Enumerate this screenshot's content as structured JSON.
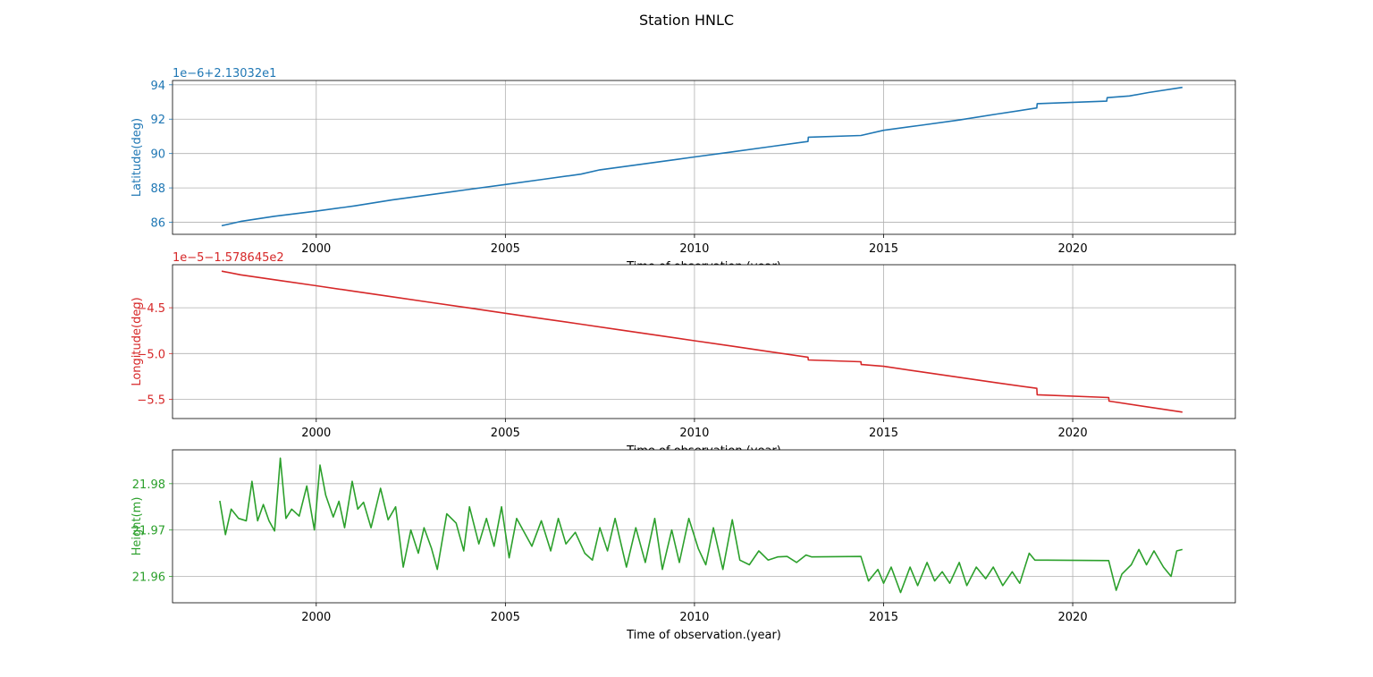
{
  "figure_title": "Station HNLC",
  "chart_data": [
    {
      "type": "line",
      "name": "latitude",
      "ylabel": "Latitude(deg)",
      "xlabel": "Time of observation.(year)",
      "offset_label": "1e−6+2.13032e1",
      "color": "#1f77b4",
      "grid": true,
      "xlim": [
        1996.2,
        2024.3
      ],
      "ylim": [
        85.3,
        94.25
      ],
      "xticks": [
        2000,
        2005,
        2010,
        2015,
        2020
      ],
      "yticks": [
        86,
        88,
        90,
        92,
        94
      ],
      "ytick_labels": [
        "86",
        "88",
        "90",
        "92",
        "94"
      ],
      "series": [
        {
          "x": [
            1997.5,
            1998.0,
            1998.9,
            2000.0,
            2001.0,
            2002.0,
            2003.0,
            2004.0,
            2005.0,
            2006.0,
            2007.0,
            2007.5,
            2008.5,
            2009.5,
            2010.0,
            2011.0,
            2012.0,
            2013.0,
            2013.01,
            2014.4,
            2015.0,
            2016.0,
            2017.0,
            2018.0,
            2019.05,
            2019.06,
            2020.9,
            2020.91,
            2021.5,
            2022.0,
            2022.9
          ],
          "y": [
            85.8,
            86.05,
            86.35,
            86.65,
            86.95,
            87.3,
            87.6,
            87.9,
            88.2,
            88.5,
            88.8,
            89.05,
            89.35,
            89.65,
            89.8,
            90.1,
            90.4,
            90.7,
            90.95,
            91.05,
            91.35,
            91.65,
            91.95,
            92.3,
            92.65,
            92.9,
            93.05,
            93.25,
            93.35,
            93.55,
            93.85
          ]
        }
      ]
    },
    {
      "type": "line",
      "name": "longitude",
      "ylabel": "Longitude(deg)",
      "xlabel": "Time of observation.(year)",
      "offset_label": "1e−5−1.578645e2",
      "color": "#d62728",
      "grid": true,
      "xlim": [
        1996.2,
        2024.3
      ],
      "ylim": [
        -5.71,
        -4.03
      ],
      "xticks": [
        2000,
        2005,
        2010,
        2015,
        2020
      ],
      "yticks": [
        -4.5,
        -5.0,
        -5.5
      ],
      "ytick_labels": [
        "−4.5",
        "−5.0",
        "−5.5"
      ],
      "series": [
        {
          "x": [
            1997.5,
            1998.0,
            1999.0,
            2000.0,
            2001.0,
            2002.0,
            2003.0,
            2004.0,
            2005.0,
            2006.0,
            2007.0,
            2008.0,
            2009.0,
            2010.0,
            2011.0,
            2012.0,
            2013.0,
            2013.01,
            2014.4,
            2014.41,
            2015.0,
            2016.0,
            2017.0,
            2018.0,
            2019.05,
            2019.06,
            2020.95,
            2020.96,
            2022.9
          ],
          "y": [
            -4.1,
            -4.14,
            -4.2,
            -4.26,
            -4.32,
            -4.38,
            -4.44,
            -4.5,
            -4.56,
            -4.62,
            -4.68,
            -4.74,
            -4.8,
            -4.86,
            -4.92,
            -4.98,
            -5.04,
            -5.07,
            -5.09,
            -5.12,
            -5.14,
            -5.2,
            -5.26,
            -5.32,
            -5.38,
            -5.45,
            -5.48,
            -5.52,
            -5.64
          ]
        }
      ]
    },
    {
      "type": "line",
      "name": "height",
      "ylabel": "Height(m)",
      "xlabel": "Time of observation.(year)",
      "color": "#2ca02c",
      "grid": true,
      "xlim": [
        1996.2,
        2024.3
      ],
      "ylim": [
        21.9543,
        21.9873
      ],
      "xticks": [
        2000,
        2005,
        2010,
        2015,
        2020
      ],
      "yticks": [
        21.96,
        21.97,
        21.98
      ],
      "ytick_labels": [
        "21.96",
        "21.97",
        "21.98"
      ],
      "series": [
        {
          "x": [
            1997.45,
            1997.6,
            1997.75,
            1997.95,
            1998.15,
            1998.3,
            1998.45,
            1998.6,
            1998.75,
            1998.9,
            1999.05,
            1999.2,
            1999.35,
            1999.55,
            1999.75,
            1999.95,
            2000.1,
            2000.25,
            2000.45,
            2000.6,
            2000.75,
            2000.95,
            2001.1,
            2001.25,
            2001.45,
            2001.7,
            2001.9,
            2002.1,
            2002.3,
            2002.5,
            2002.7,
            2002.85,
            2003.05,
            2003.2,
            2003.45,
            2003.7,
            2003.9,
            2004.05,
            2004.3,
            2004.5,
            2004.7,
            2004.9,
            2005.1,
            2005.3,
            2005.5,
            2005.7,
            2005.95,
            2006.2,
            2006.4,
            2006.6,
            2006.85,
            2007.1,
            2007.3,
            2007.5,
            2007.7,
            2007.9,
            2008.2,
            2008.45,
            2008.7,
            2008.95,
            2009.15,
            2009.4,
            2009.6,
            2009.85,
            2010.1,
            2010.3,
            2010.5,
            2010.75,
            2011.0,
            2011.2,
            2011.45,
            2011.7,
            2011.95,
            2012.2,
            2012.45,
            2012.7,
            2012.95,
            2013.1,
            2014.4,
            2014.6,
            2014.85,
            2015.0,
            2015.2,
            2015.45,
            2015.7,
            2015.9,
            2016.15,
            2016.35,
            2016.55,
            2016.75,
            2017.0,
            2017.2,
            2017.45,
            2017.7,
            2017.9,
            2018.15,
            2018.4,
            2018.6,
            2018.85,
            2019.0,
            2019.15,
            2019.3,
            2020.95,
            2021.15,
            2021.3,
            2021.55,
            2021.75,
            2021.95,
            2022.15,
            2022.4,
            2022.6,
            2022.75,
            2022.9
          ],
          "y": [
            21.9763,
            21.969,
            21.9745,
            21.9725,
            21.972,
            21.9805,
            21.972,
            21.9755,
            21.972,
            21.9698,
            21.9855,
            21.9725,
            21.9745,
            21.973,
            21.9795,
            21.97,
            21.984,
            21.9775,
            21.9728,
            21.9762,
            21.9705,
            21.9805,
            21.9745,
            21.976,
            21.9705,
            21.979,
            21.9722,
            21.975,
            21.962,
            21.97,
            21.965,
            21.9705,
            21.966,
            21.9615,
            21.9735,
            21.9715,
            21.9655,
            21.975,
            21.967,
            21.9725,
            21.9665,
            21.975,
            21.964,
            21.9725,
            21.9695,
            21.9665,
            21.972,
            21.9655,
            21.9725,
            21.967,
            21.9695,
            21.965,
            21.9635,
            21.9705,
            21.9655,
            21.9725,
            21.962,
            21.9705,
            21.963,
            21.9725,
            21.9615,
            21.97,
            21.963,
            21.9725,
            21.966,
            21.9625,
            21.9705,
            21.9615,
            21.9722,
            21.9635,
            21.9625,
            21.9655,
            21.9635,
            21.9642,
            21.9643,
            21.963,
            21.9646,
            21.9642,
            21.9643,
            21.959,
            21.9615,
            21.9585,
            21.962,
            21.9565,
            21.962,
            21.958,
            21.963,
            21.959,
            21.961,
            21.9585,
            21.963,
            21.958,
            21.962,
            21.9595,
            21.962,
            21.958,
            21.961,
            21.9585,
            21.965,
            21.9635,
            21.9635,
            21.9635,
            21.9634,
            21.957,
            21.9605,
            21.9625,
            21.9658,
            21.9625,
            21.9655,
            21.962,
            21.96,
            21.9655,
            21.9658
          ]
        }
      ]
    }
  ]
}
